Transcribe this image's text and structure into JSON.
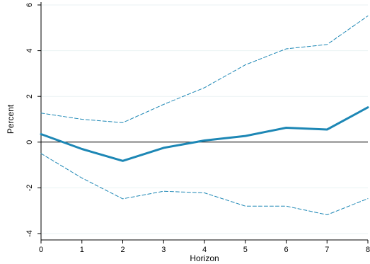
{
  "chart_data": {
    "type": "line",
    "xlabel": "Horizon",
    "ylabel": "Percent",
    "x": [
      0,
      1,
      2,
      3,
      4,
      5,
      6,
      7,
      8
    ],
    "xlim": [
      0,
      8
    ],
    "ylim": [
      -4,
      6
    ],
    "xticks": [
      "0",
      "1",
      "2",
      "3",
      "4",
      "5",
      "6",
      "7",
      "8"
    ],
    "yticks": [
      "-4",
      "-2",
      "0",
      "2",
      "4",
      "6"
    ],
    "grid": "horizontal",
    "zero_line": true,
    "series": [
      {
        "role": "estimate",
        "style": "solid",
        "color": "#1d87b5",
        "values": [
          0.35,
          -0.3,
          -0.82,
          -0.25,
          0.07,
          0.27,
          0.63,
          0.55,
          1.52
        ]
      },
      {
        "role": "upper-band",
        "style": "dashed",
        "color": "#1d87b5",
        "values": [
          1.27,
          1.0,
          0.85,
          1.65,
          2.38,
          3.38,
          4.08,
          4.27,
          5.52
        ]
      },
      {
        "role": "lower-band",
        "style": "dashed",
        "color": "#1d87b5",
        "values": [
          -0.5,
          -1.57,
          -2.48,
          -2.15,
          -2.22,
          -2.8,
          -2.8,
          -3.18,
          -2.47
        ]
      }
    ]
  }
}
